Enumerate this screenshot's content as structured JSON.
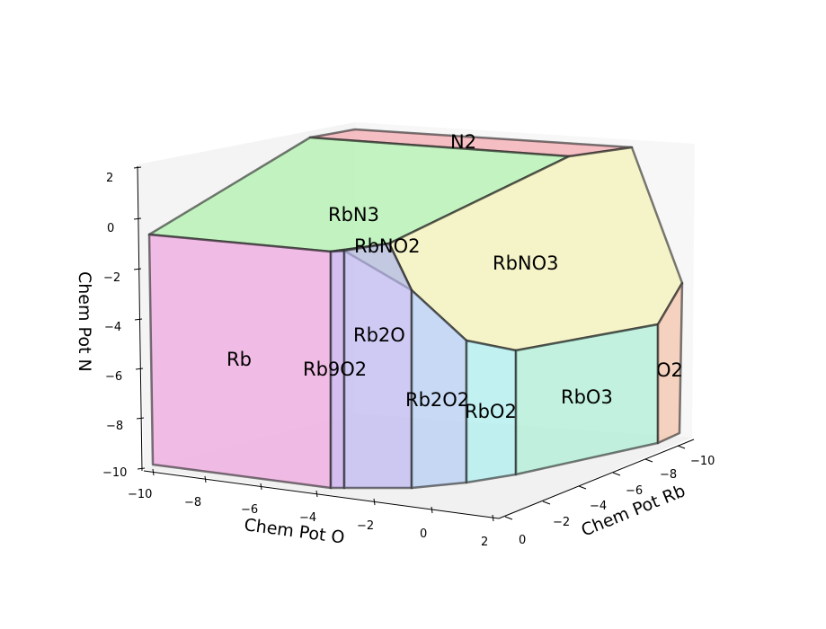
{
  "chart_data": {
    "type": "3d-phase-diagram",
    "xlabel": "Chem Pot O",
    "ylabel": "Chem Pot Rb",
    "zlabel": "Chem Pot N",
    "x_ticks": [
      "−10",
      "−8",
      "−6",
      "−4",
      "−2",
      "0",
      "2"
    ],
    "y_ticks": [
      "−10",
      "−8",
      "−6",
      "−4",
      "−2",
      "0"
    ],
    "z_ticks": [
      "2",
      "0",
      "−2",
      "−4",
      "−6",
      "−8",
      "−10"
    ],
    "xlim": [
      -10,
      2
    ],
    "ylim": [
      -10,
      0
    ],
    "zlim": [
      -10,
      2
    ],
    "grid": false,
    "regions": [
      {
        "name": "N2",
        "color": "#f4a0a8"
      },
      {
        "name": "RbN3",
        "color": "#9ff09b"
      },
      {
        "name": "RbNO2",
        "color": "#c9f0a6"
      },
      {
        "name": "RbNO3",
        "color": "#f4f0a8"
      },
      {
        "name": "Rb",
        "color": "#ee9ddb"
      },
      {
        "name": "Rb9O2",
        "color": "#c6a8ee"
      },
      {
        "name": "Rb2O",
        "color": "#b8b2f2"
      },
      {
        "name": "Rb2O2",
        "color": "#adc9f2"
      },
      {
        "name": "RbO2",
        "color": "#a6eef0"
      },
      {
        "name": "RbO3",
        "color": "#a6f0d2"
      },
      {
        "name": "O2",
        "color": "#f4c0a6"
      }
    ]
  }
}
